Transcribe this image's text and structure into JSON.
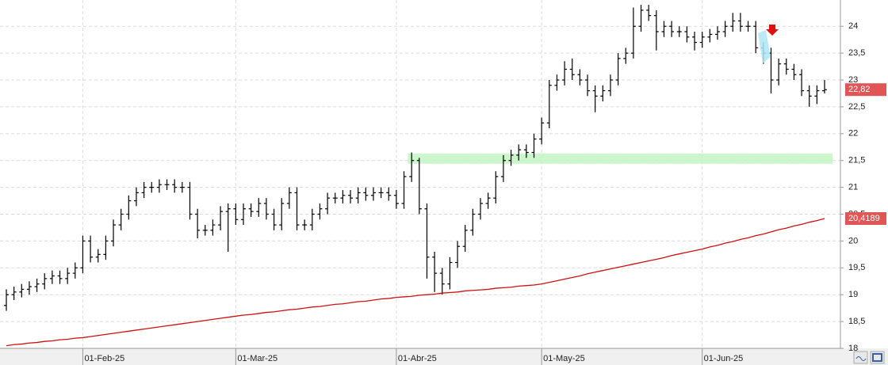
{
  "chart_data": {
    "type": "ohlc",
    "categories": [
      null,
      null,
      null,
      null,
      null,
      null,
      null,
      null,
      null,
      null,
      "01-Feb-25",
      null,
      null,
      null,
      null,
      null,
      null,
      null,
      null,
      null,
      null,
      null,
      null,
      null,
      null,
      null,
      null,
      null,
      null,
      null,
      "01-Mar-25",
      null,
      null,
      null,
      null,
      null,
      null,
      null,
      null,
      null,
      null,
      null,
      null,
      null,
      null,
      null,
      null,
      null,
      null,
      null,
      null,
      "01-Abr-25",
      null,
      null,
      null,
      null,
      null,
      null,
      null,
      null,
      null,
      null,
      null,
      null,
      null,
      null,
      null,
      null,
      null,
      null,
      "01-May-25",
      null,
      null,
      null,
      null,
      null,
      null,
      null,
      null,
      null,
      null,
      null,
      null,
      null,
      null,
      null,
      null,
      null,
      null,
      null,
      null,
      "01-Jun-25",
      null,
      null,
      null,
      null,
      null,
      null,
      null,
      null,
      null,
      null,
      null,
      null,
      null,
      null,
      null,
      null
    ],
    "open": [
      18.8,
      19.0,
      19.05,
      19.1,
      19.15,
      19.2,
      19.3,
      19.35,
      19.3,
      19.4,
      19.5,
      20.0,
      19.7,
      19.75,
      20.0,
      20.3,
      20.5,
      20.75,
      20.9,
      21.0,
      21.0,
      21.05,
      21.05,
      21.0,
      21.0,
      20.5,
      20.2,
      20.2,
      20.3,
      20.55,
      20.6,
      20.4,
      20.6,
      20.55,
      20.7,
      20.5,
      20.3,
      20.7,
      20.9,
      20.3,
      20.3,
      20.5,
      20.6,
      20.8,
      20.8,
      20.85,
      20.8,
      20.9,
      20.85,
      20.9,
      20.9,
      20.85,
      20.7,
      21.2,
      21.5,
      20.6,
      19.7,
      19.4,
      19.2,
      19.6,
      19.9,
      20.2,
      20.5,
      20.7,
      20.8,
      21.2,
      21.5,
      21.6,
      21.7,
      21.65,
      21.9,
      22.2,
      22.9,
      23.0,
      23.2,
      23.1,
      23.0,
      22.8,
      22.7,
      22.8,
      23.0,
      23.4,
      23.5,
      24.0,
      24.3,
      24.2,
      23.9,
      24.0,
      23.9,
      23.9,
      23.8,
      23.7,
      23.8,
      23.85,
      23.9,
      24.0,
      24.1,
      24.0,
      24.0,
      23.6,
      23.5,
      23.0,
      23.3,
      23.2,
      23.1,
      22.8,
      22.7,
      22.8
    ],
    "high": [
      19.1,
      19.15,
      19.2,
      19.25,
      19.3,
      19.4,
      19.45,
      19.45,
      19.5,
      19.6,
      20.1,
      20.1,
      19.85,
      20.1,
      20.4,
      20.6,
      20.85,
      21.0,
      21.1,
      21.1,
      21.15,
      21.15,
      21.15,
      21.1,
      21.1,
      20.6,
      20.3,
      20.4,
      20.65,
      20.7,
      20.7,
      20.7,
      20.7,
      20.8,
      20.8,
      20.6,
      20.8,
      21.0,
      21.0,
      20.4,
      20.6,
      20.7,
      20.9,
      20.9,
      20.95,
      20.95,
      21.0,
      21.0,
      21.0,
      21.0,
      21.0,
      20.95,
      21.3,
      21.65,
      21.55,
      20.7,
      19.8,
      19.5,
      19.7,
      20.0,
      20.3,
      20.6,
      20.8,
      20.9,
      21.3,
      21.6,
      21.7,
      21.8,
      21.8,
      22.0,
      22.3,
      23.0,
      23.1,
      23.35,
      23.4,
      23.2,
      23.1,
      22.9,
      22.9,
      23.1,
      23.5,
      23.6,
      24.35,
      24.4,
      24.4,
      24.3,
      24.1,
      24.1,
      24.0,
      24.0,
      23.9,
      23.9,
      23.95,
      24.0,
      24.1,
      24.25,
      24.25,
      24.1,
      24.1,
      23.7,
      23.6,
      23.4,
      23.4,
      23.3,
      23.2,
      22.9,
      22.9,
      23.0
    ],
    "low": [
      18.7,
      18.9,
      18.95,
      19.0,
      19.05,
      19.1,
      19.2,
      19.2,
      19.2,
      19.3,
      19.4,
      19.6,
      19.6,
      19.65,
      19.9,
      20.2,
      20.4,
      20.65,
      20.8,
      20.9,
      20.9,
      20.95,
      20.9,
      20.9,
      20.4,
      20.05,
      20.1,
      20.1,
      20.2,
      19.8,
      20.3,
      20.3,
      20.45,
      20.45,
      20.4,
      20.2,
      20.2,
      20.6,
      20.2,
      20.2,
      20.2,
      20.4,
      20.5,
      20.7,
      20.7,
      20.7,
      20.7,
      20.75,
      20.75,
      20.8,
      20.75,
      20.6,
      20.6,
      21.1,
      20.5,
      19.3,
      19.05,
      19.0,
      19.1,
      19.5,
      19.8,
      20.1,
      20.4,
      20.6,
      20.7,
      21.1,
      21.4,
      21.5,
      21.55,
      21.55,
      21.8,
      22.1,
      22.8,
      22.9,
      23.0,
      22.9,
      22.7,
      22.4,
      22.6,
      22.7,
      22.9,
      23.3,
      23.4,
      23.9,
      24.1,
      23.55,
      23.8,
      23.8,
      23.8,
      23.7,
      23.55,
      23.6,
      23.7,
      23.75,
      23.8,
      23.9,
      23.9,
      23.9,
      23.5,
      23.3,
      22.75,
      22.9,
      23.1,
      23.0,
      22.7,
      22.5,
      22.55,
      22.75
    ],
    "close": [
      19.0,
      19.05,
      19.1,
      19.15,
      19.2,
      19.3,
      19.35,
      19.3,
      19.4,
      19.5,
      20.0,
      19.7,
      19.75,
      20.0,
      20.3,
      20.5,
      20.75,
      20.9,
      21.0,
      21.0,
      21.05,
      21.05,
      21.0,
      21.0,
      20.5,
      20.2,
      20.2,
      20.3,
      20.55,
      20.6,
      20.4,
      20.6,
      20.55,
      20.7,
      20.5,
      20.3,
      20.7,
      20.9,
      20.3,
      20.3,
      20.5,
      20.6,
      20.8,
      20.8,
      20.85,
      20.8,
      20.9,
      20.85,
      20.9,
      20.9,
      20.85,
      20.7,
      21.2,
      21.5,
      20.6,
      19.7,
      19.4,
      19.2,
      19.6,
      19.9,
      20.2,
      20.5,
      20.7,
      20.8,
      21.2,
      21.5,
      21.6,
      21.7,
      21.65,
      21.9,
      22.2,
      22.9,
      23.0,
      23.2,
      23.1,
      23.0,
      22.8,
      22.7,
      22.8,
      23.0,
      23.4,
      23.5,
      24.0,
      24.3,
      24.2,
      23.9,
      24.0,
      23.9,
      23.9,
      23.8,
      23.7,
      23.8,
      23.85,
      23.9,
      24.0,
      24.1,
      24.0,
      24.0,
      23.6,
      23.5,
      23.0,
      23.3,
      23.2,
      23.1,
      22.8,
      22.7,
      22.8,
      22.82
    ],
    "close_value_labels": [
      null,
      null,
      null,
      null,
      null,
      null,
      null,
      null,
      null,
      null,
      null,
      null,
      null,
      null,
      null,
      null,
      null,
      null,
      null,
      null,
      null,
      null,
      null,
      null,
      null,
      null,
      null,
      null,
      null,
      null,
      null,
      null,
      null,
      null,
      null,
      null,
      null,
      null,
      null,
      null,
      null,
      null,
      null,
      null,
      null,
      null,
      null,
      null,
      null,
      null,
      null,
      null,
      null,
      null,
      null,
      null,
      null,
      null,
      null,
      null,
      null,
      null,
      null,
      null,
      null,
      null,
      null,
      null,
      null,
      null,
      null,
      null,
      null,
      null,
      null,
      null,
      null,
      null,
      null,
      null,
      null,
      null,
      null,
      null,
      null,
      null,
      null,
      null,
      null,
      null,
      null,
      null,
      null,
      null,
      null,
      null,
      null,
      null,
      null,
      null,
      null,
      null,
      null,
      null,
      null,
      null,
      null,
      "22,82"
    ],
    "color": "#000000",
    "moving_average": {
      "color": "#cc1111",
      "values": [
        18.05,
        18.07,
        18.08,
        18.1,
        18.11,
        18.13,
        18.14,
        18.16,
        18.17,
        18.19,
        18.2,
        18.22,
        18.24,
        18.26,
        18.28,
        18.3,
        18.32,
        18.34,
        18.36,
        18.38,
        18.4,
        18.42,
        18.44,
        18.46,
        18.48,
        18.5,
        18.52,
        18.54,
        18.56,
        18.58,
        18.6,
        18.62,
        18.63,
        18.65,
        18.67,
        18.68,
        18.7,
        18.72,
        18.73,
        18.75,
        18.77,
        18.78,
        18.8,
        18.82,
        18.83,
        18.85,
        18.87,
        18.88,
        18.9,
        18.92,
        18.93,
        18.95,
        18.96,
        18.97,
        18.99,
        19.0,
        19.01,
        19.03,
        19.04,
        19.05,
        19.07,
        19.08,
        19.09,
        19.1,
        19.12,
        19.13,
        19.14,
        19.16,
        19.17,
        19.18,
        19.2,
        19.23,
        19.26,
        19.29,
        19.32,
        19.35,
        19.39,
        19.42,
        19.45,
        19.48,
        19.51,
        19.54,
        19.57,
        19.6,
        19.63,
        19.66,
        19.69,
        19.73,
        19.76,
        19.79,
        19.82,
        19.85,
        19.89,
        19.92,
        19.96,
        19.99,
        20.03,
        20.06,
        20.1,
        20.13,
        20.17,
        20.21,
        20.24,
        20.28,
        20.31,
        20.35,
        20.38,
        20.4189
      ],
      "value_labels": [
        null,
        null,
        null,
        null,
        null,
        null,
        null,
        null,
        null,
        null,
        null,
        null,
        null,
        null,
        null,
        null,
        null,
        null,
        null,
        null,
        null,
        null,
        null,
        null,
        null,
        null,
        null,
        null,
        null,
        null,
        null,
        null,
        null,
        null,
        null,
        null,
        null,
        null,
        null,
        null,
        null,
        null,
        null,
        null,
        null,
        null,
        null,
        null,
        null,
        null,
        null,
        null,
        null,
        null,
        null,
        null,
        null,
        null,
        null,
        null,
        null,
        null,
        null,
        null,
        null,
        null,
        null,
        null,
        null,
        null,
        null,
        null,
        null,
        null,
        null,
        null,
        null,
        null,
        null,
        null,
        null,
        null,
        null,
        null,
        null,
        null,
        null,
        null,
        null,
        null,
        null,
        null,
        null,
        null,
        null,
        null,
        null,
        null,
        null,
        null,
        null,
        null,
        null,
        null,
        null,
        null,
        null,
        "20,4189"
      ]
    },
    "support_zone": [
      21.44,
      21.63
    ],
    "ylim": [
      18,
      24.49
    ],
    "yticks": [
      18,
      {
        "value": 18.5,
        "label": "18,5"
      },
      19,
      {
        "value": 19.5,
        "label": "19,5"
      },
      20,
      {
        "value": 20.5,
        "label": "20,5"
      },
      21,
      {
        "value": 21.5,
        "label": "21,5"
      },
      22,
      {
        "value": 22.5,
        "label": "22,5"
      },
      23,
      {
        "value": 23.5,
        "label": "23,5"
      },
      24
    ],
    "grid": true
  }
}
